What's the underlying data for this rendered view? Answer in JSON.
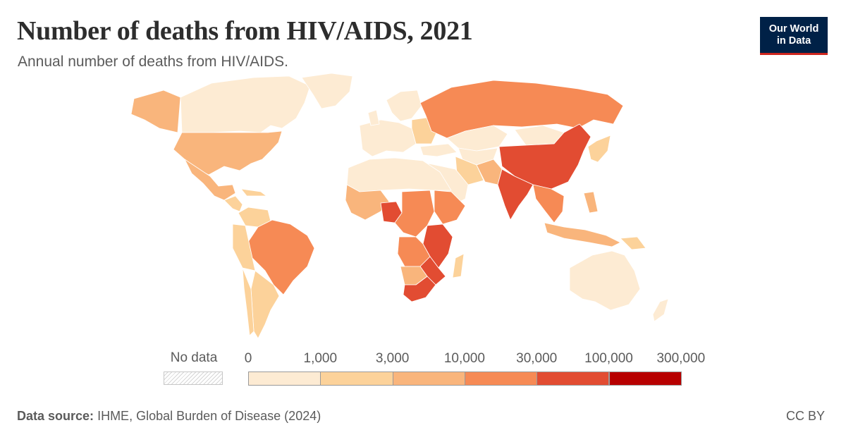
{
  "header": {
    "title": "Number of deaths from HIV/AIDS, 2021",
    "subtitle": "Annual number of deaths from HIV/AIDS."
  },
  "logo": {
    "line1": "Our World",
    "line2": "in Data"
  },
  "legend": {
    "no_data_label": "No data",
    "ticks": [
      "0",
      "1,000",
      "3,000",
      "10,000",
      "30,000",
      "100,000",
      "300,000"
    ],
    "bins": [
      {
        "from": 0,
        "to": 1000,
        "color": "#fdebd3"
      },
      {
        "from": 1000,
        "to": 3000,
        "color": "#fcd29a"
      },
      {
        "from": 3000,
        "to": 10000,
        "color": "#f9b57c"
      },
      {
        "from": 10000,
        "to": 30000,
        "color": "#f68a55"
      },
      {
        "from": 30000,
        "to": 100000,
        "color": "#e24c32"
      },
      {
        "from": 100000,
        "to": 300000,
        "color": "#b70000"
      }
    ]
  },
  "footer": {
    "source_label": "Data source:",
    "source_text": "IHME, Global Burden of Disease (2024)",
    "license": "CC BY"
  },
  "colors": {
    "map_outline": "#ffffff",
    "title": "#2d2d2d",
    "logo_background": "#002147",
    "logo_accent": "#ce261e"
  }
}
